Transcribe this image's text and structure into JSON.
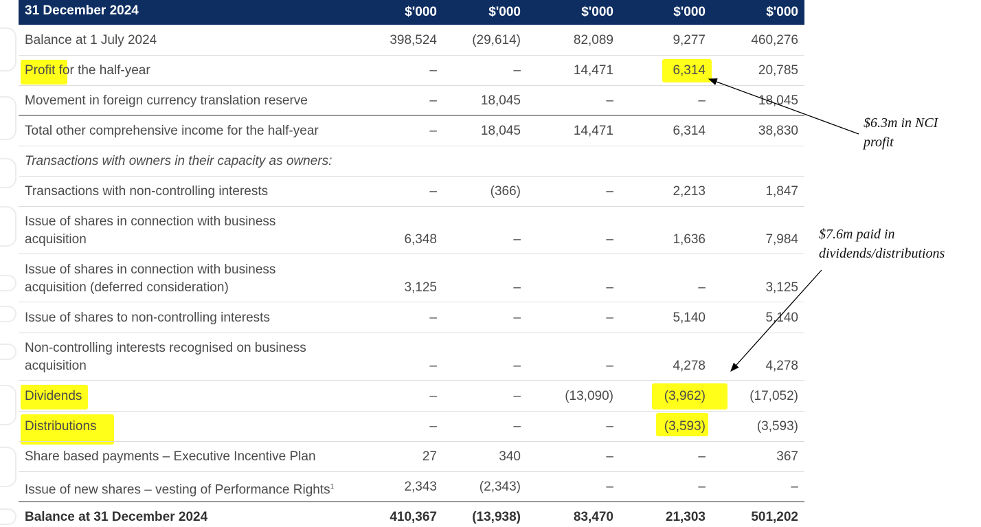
{
  "header": {
    "period": "31 December 2024",
    "units": [
      "$'000",
      "$'000",
      "$'000",
      "$'000",
      "$'000"
    ]
  },
  "rows": [
    {
      "label": "Balance at 1 July 2024",
      "values": [
        "398,524",
        "(29,614)",
        "82,089",
        "9,277",
        "460,276"
      ]
    },
    {
      "label": "Profit for the half-year",
      "values": [
        "–",
        "–",
        "14,471",
        "6,314",
        "20,785"
      ]
    },
    {
      "label": "Movement in foreign currency translation reserve",
      "values": [
        "–",
        "18,045",
        "–",
        "–",
        "18,045"
      ]
    },
    {
      "label": "Total other comprehensive income for the half-year",
      "values": [
        "–",
        "18,045",
        "14,471",
        "6,314",
        "38,830"
      ]
    },
    {
      "label": "Transactions with owners in their capacity as owners:",
      "values": [
        "",
        "",
        "",
        "",
        ""
      ]
    },
    {
      "label": "Transactions with non-controlling interests",
      "values": [
        "–",
        "(366)",
        "–",
        "2,213",
        "1,847"
      ]
    },
    {
      "label_line1": "Issue of shares in connection with business",
      "label_line2": "acquisition",
      "values": [
        "6,348",
        "–",
        "–",
        "1,636",
        "7,984"
      ]
    },
    {
      "label_line1": "Issue of shares in connection with business",
      "label_line2": "acquisition (deferred consideration)",
      "values": [
        "3,125",
        "–",
        "–",
        "–",
        "3,125"
      ]
    },
    {
      "label": "Issue of shares to non-controlling interests",
      "values": [
        "–",
        "–",
        "–",
        "5,140",
        "5,140"
      ]
    },
    {
      "label_line1": "Non-controlling interests recognised on business",
      "label_line2": "acquisition",
      "values": [
        "–",
        "–",
        "–",
        "4,278",
        "4,278"
      ]
    },
    {
      "label": "Dividends",
      "values": [
        "–",
        "–",
        "(13,090)",
        "(3,962)",
        "(17,052)"
      ]
    },
    {
      "label": "Distributions",
      "values": [
        "–",
        "–",
        "–",
        "(3,593)",
        "(3,593)"
      ]
    },
    {
      "label": "Share based payments – Executive Incentive Plan",
      "values": [
        "27",
        "340",
        "–",
        "–",
        "367"
      ]
    },
    {
      "label": "Issue of new shares – vesting of Performance Rights",
      "footnote": "1",
      "values": [
        "2,343",
        "(2,343)",
        "–",
        "–",
        "–"
      ]
    },
    {
      "label": "Balance at 31 December 2024",
      "values": [
        "410,367",
        "(13,938)",
        "83,470",
        "21,303",
        "501,202"
      ]
    }
  ],
  "annotations": {
    "nci_profit_line1": "$6.3m in NCI",
    "nci_profit_line2": "profit",
    "dividends_line1": "$7.6m paid in",
    "dividends_line2": "dividends/distributions"
  },
  "colors": {
    "header_bg": "#0e2e62",
    "highlight": "#ffff1a"
  }
}
